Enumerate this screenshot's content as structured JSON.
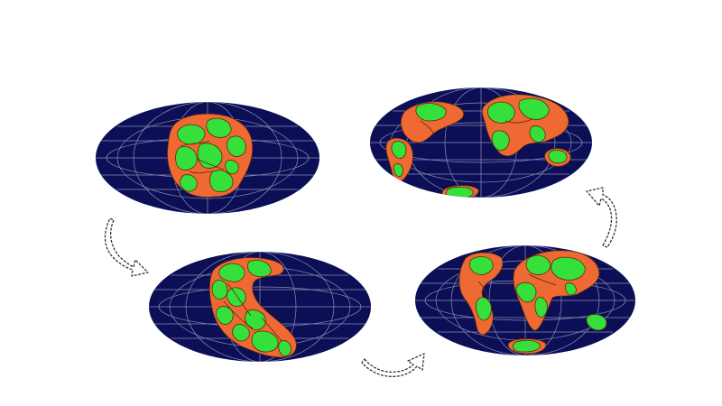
{
  "diagram": {
    "stages": [
      {
        "id": "stage-1",
        "description_visible_text": ""
      },
      {
        "id": "stage-2",
        "description_visible_text": ""
      },
      {
        "id": "stage-3",
        "description_visible_text": ""
      },
      {
        "id": "stage-4",
        "description_visible_text": ""
      }
    ],
    "colors": {
      "ocean": "#0c0f55",
      "grid": "#8a8fb8",
      "crust": "#ef6a33",
      "continent": "#36e03a",
      "outline": "#5a2a10",
      "arrow_stroke": "#333333",
      "arrow_fill": "#ffffff"
    }
  }
}
